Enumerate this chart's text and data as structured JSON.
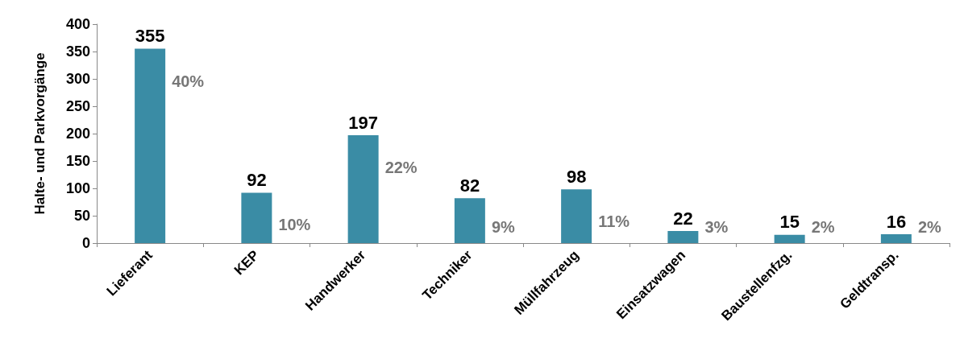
{
  "chart_data": {
    "type": "bar",
    "ylabel": "Halte- und Parkvorgänge",
    "categories": [
      "Lieferant",
      "KEP",
      "Handwerker",
      "Techniker",
      "Müllfahrzeug",
      "Einsatzwagen",
      "Baustellenfzg.",
      "Geldtransp."
    ],
    "values": [
      355,
      92,
      197,
      82,
      98,
      22,
      15,
      16
    ],
    "color": "#3a8ca5",
    "ylim": [
      0,
      400
    ],
    "yticks": [
      0,
      50,
      100,
      150,
      200,
      250,
      300,
      350,
      400
    ],
    "grid": false,
    "data_labels": true,
    "annotations": [
      "40%",
      "10%",
      "22%",
      "9%",
      "11%",
      "3%",
      "2%",
      "2%"
    ]
  }
}
